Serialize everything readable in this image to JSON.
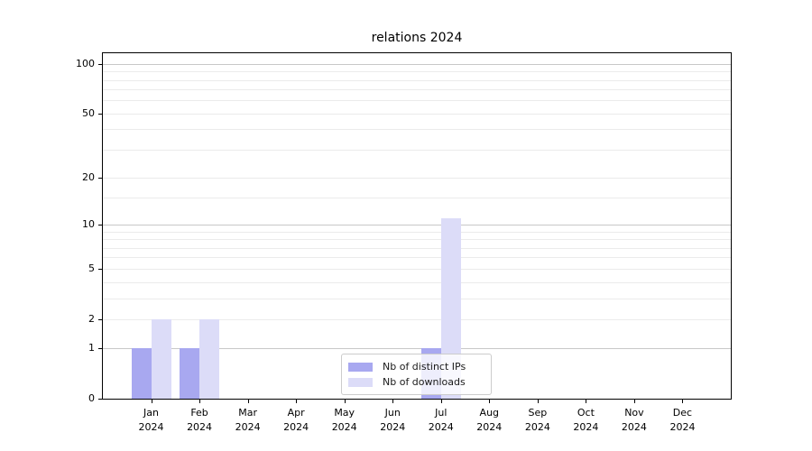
{
  "chart_data": {
    "type": "bar",
    "title": "relations 2024",
    "categories": [
      {
        "month": "Jan",
        "year": "2024"
      },
      {
        "month": "Feb",
        "year": "2024"
      },
      {
        "month": "Mar",
        "year": "2024"
      },
      {
        "month": "Apr",
        "year": "2024"
      },
      {
        "month": "May",
        "year": "2024"
      },
      {
        "month": "Jun",
        "year": "2024"
      },
      {
        "month": "Jul",
        "year": "2024"
      },
      {
        "month": "Aug",
        "year": "2024"
      },
      {
        "month": "Sep",
        "year": "2024"
      },
      {
        "month": "Oct",
        "year": "2024"
      },
      {
        "month": "Nov",
        "year": "2024"
      },
      {
        "month": "Dec",
        "year": "2024"
      }
    ],
    "series": [
      {
        "name": "Nb of distinct IPs",
        "color": "#a8a8f0",
        "values": [
          1,
          1,
          0,
          0,
          0,
          0,
          1,
          0,
          0,
          0,
          0,
          0
        ]
      },
      {
        "name": "Nb of downloads",
        "color": "#dcdcf8",
        "values": [
          2,
          2,
          0,
          0,
          0,
          0,
          11,
          0,
          0,
          0,
          0,
          0
        ]
      }
    ],
    "yscale": "log1p",
    "ylim": [
      0,
      116
    ],
    "yticks": [
      100,
      50,
      20,
      10,
      5,
      2,
      1,
      0
    ],
    "grid": {
      "major": [
        1,
        10,
        100
      ],
      "light": [
        2,
        5,
        20,
        50
      ],
      "minor": [
        3,
        4,
        6,
        7,
        8,
        9,
        15,
        30,
        40,
        60,
        70,
        80,
        90
      ],
      "on": true
    },
    "legend_position": "lower center",
    "colors": {
      "axis": "#000000",
      "grid_major": "#c8c8c8",
      "grid_minor": "#ebebeb"
    }
  }
}
